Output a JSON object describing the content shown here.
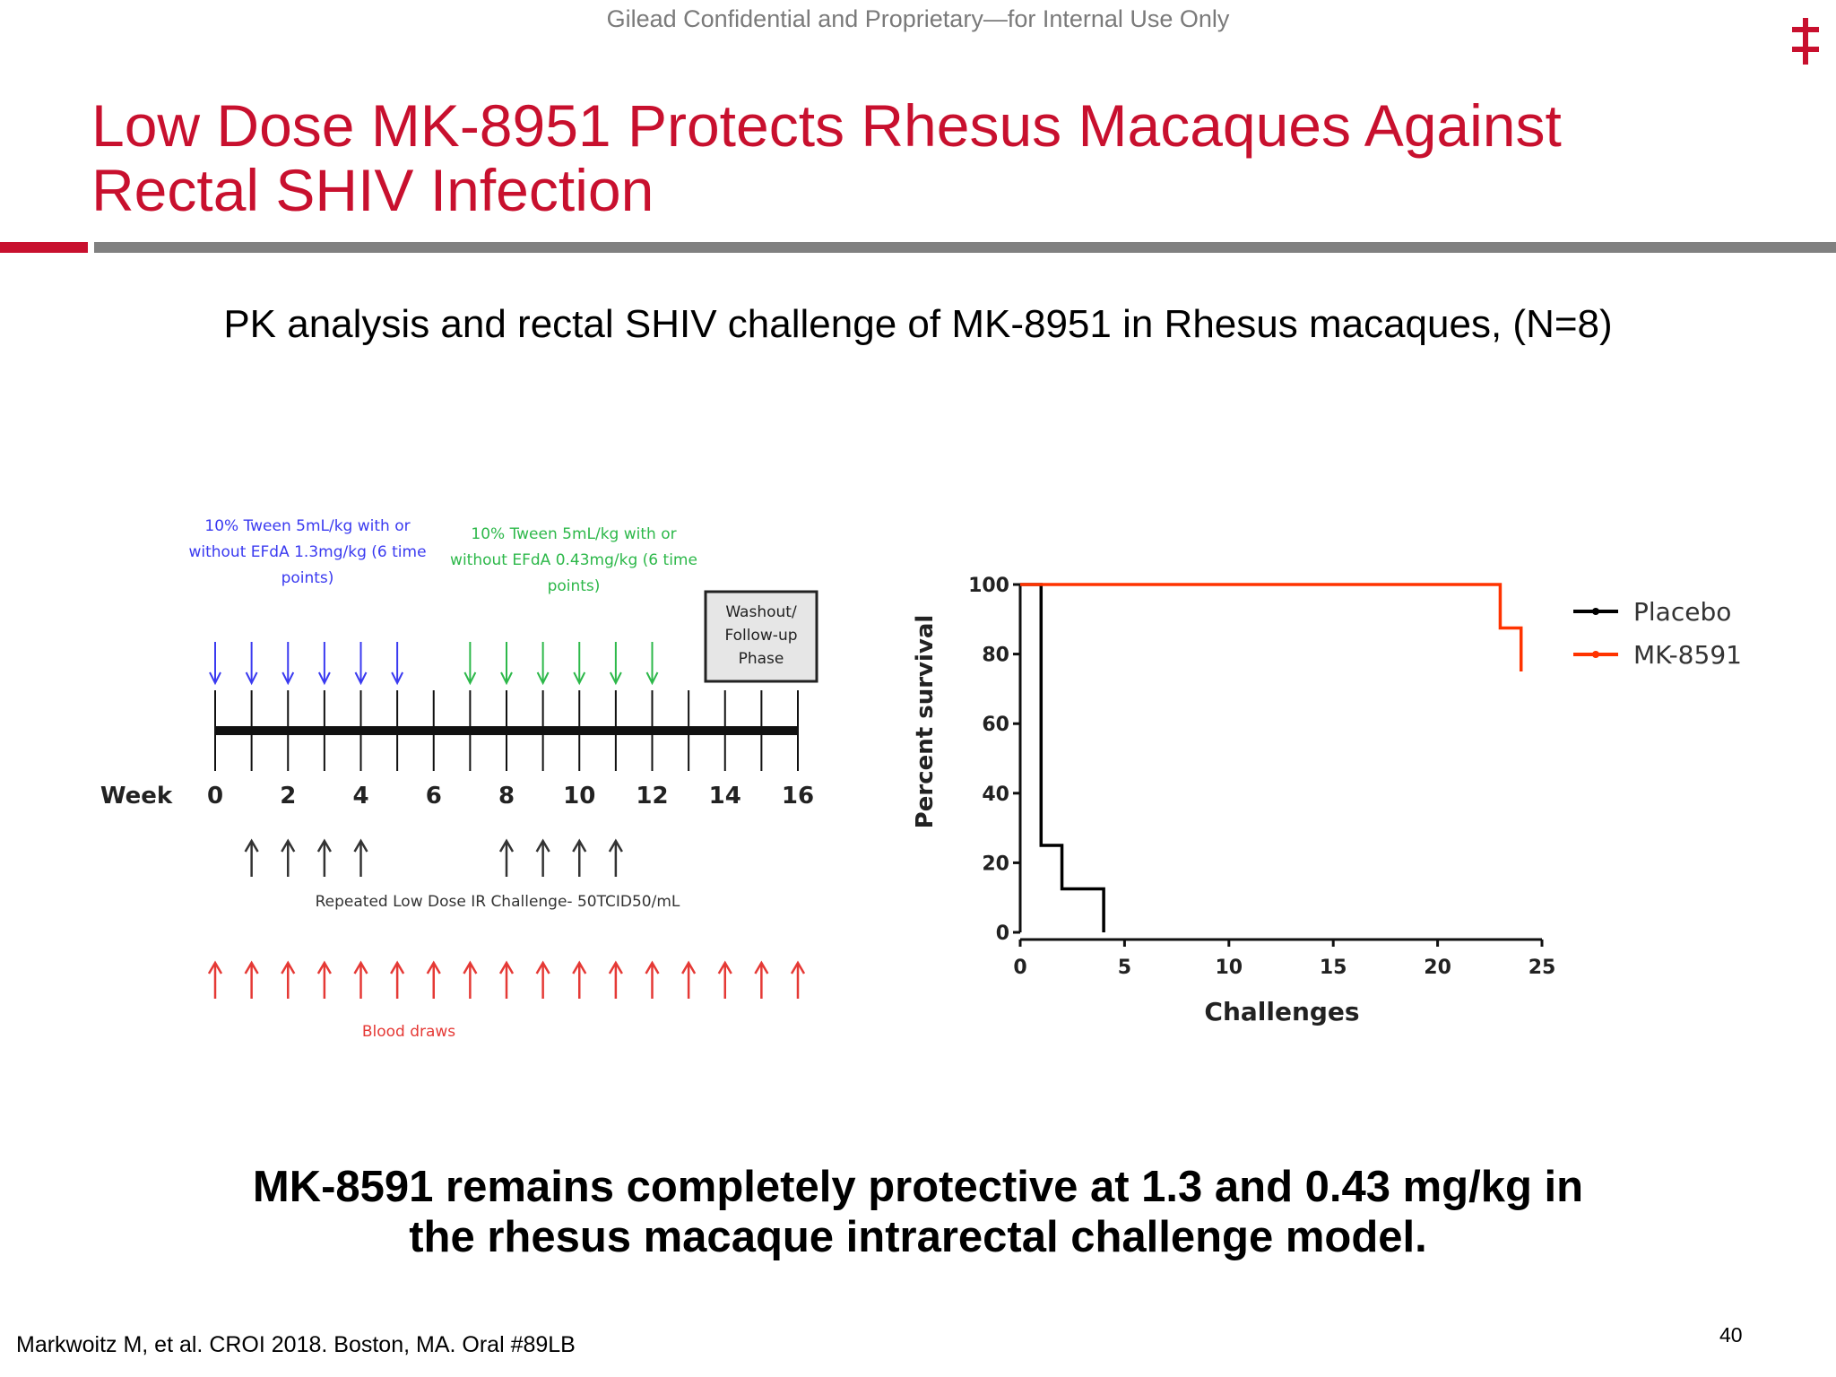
{
  "header": {
    "confidential_notice": "Gilead Confidential and Proprietary—for Internal Use Only",
    "logo_icon": "double-dagger-icon",
    "brand_color": "#c8102e"
  },
  "title": {
    "line1": "Low Dose MK-8951 Protects Rhesus Macaques Against",
    "line2": "Rectal SHIV Infection"
  },
  "subtitle": "PK analysis and rectal SHIV challenge of MK-8951 in Rhesus macaques, (N=8)",
  "timeline": {
    "week_label": "Week",
    "week_ticks": [
      "0",
      "2",
      "4",
      "6",
      "8",
      "10",
      "12",
      "14",
      "16"
    ],
    "dosing_1": {
      "lines": [
        "10% Tween 5mL/kg with or",
        "without EFdA 1.3mg/kg (6 time",
        "points)"
      ],
      "color": "#3a3af0",
      "weeks": [
        0,
        1,
        2,
        3,
        4,
        5
      ]
    },
    "dosing_2": {
      "lines": [
        "10% Tween 5mL/kg with or",
        "without EFdA 0.43mg/kg (6 time",
        "points)"
      ],
      "color": "#2db84a",
      "weeks": [
        7,
        8,
        9,
        10,
        11,
        12
      ]
    },
    "washout": {
      "lines": [
        "Washout/",
        "Follow-up",
        "Phase"
      ]
    },
    "challenges": {
      "label": "Repeated Low Dose IR Challenge- 50TCID50/mL",
      "weeks": [
        1,
        2,
        3,
        4,
        8,
        9,
        10,
        11
      ],
      "color": "#333333"
    },
    "blood_draws": {
      "label": "Blood draws",
      "weeks": [
        0,
        1,
        2,
        3,
        4,
        5,
        6,
        7,
        8,
        9,
        10,
        11,
        12,
        13,
        14,
        15,
        16
      ],
      "color": "#e53935"
    }
  },
  "chart_data": {
    "type": "line",
    "step": true,
    "title": "",
    "xlabel": "Challenges",
    "ylabel": "Percent survival",
    "xlim": [
      0,
      25
    ],
    "ylim": [
      0,
      100
    ],
    "xticks": [
      "0",
      "5",
      "10",
      "15",
      "20",
      "25"
    ],
    "yticks": [
      "0",
      "20",
      "40",
      "60",
      "80",
      "100"
    ],
    "legend_position": "top-right",
    "grid": false,
    "series": [
      {
        "name": "Placebo",
        "color": "#000000",
        "x": [
          0,
          1,
          1,
          2,
          2,
          4,
          4
        ],
        "y": [
          100,
          100,
          25,
          25,
          12.5,
          12.5,
          0
        ]
      },
      {
        "name": "MK-8591",
        "color": "#ff3300",
        "x": [
          0,
          23,
          23,
          24,
          24
        ],
        "y": [
          100,
          100,
          87.5,
          87.5,
          75
        ]
      }
    ]
  },
  "conclusion": {
    "line1": "MK-8591 remains completely protective at 1.3 and 0.43 mg/kg in",
    "line2": "the rhesus macaque intrarectal challenge model."
  },
  "footer": {
    "citation": "Markwoitz M, et al. CROI 2018. Boston, MA. Oral #89LB",
    "page_number": "40"
  }
}
